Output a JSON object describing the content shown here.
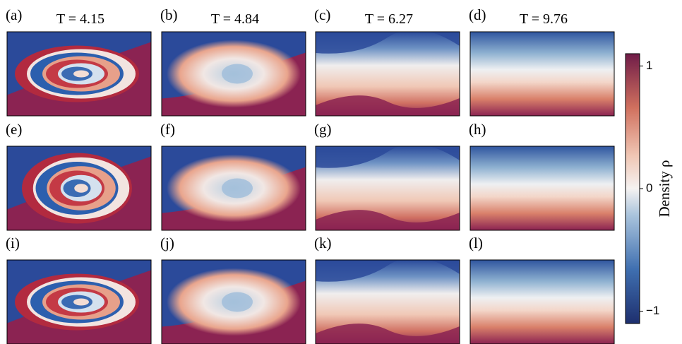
{
  "panels": [
    {
      "label": "(a)",
      "title": "T = 4.15"
    },
    {
      "label": "(b)",
      "title": "T = 4.84"
    },
    {
      "label": "(c)",
      "title": "T = 6.27"
    },
    {
      "label": "(d)",
      "title": "T = 9.76"
    },
    {
      "label": "(e)"
    },
    {
      "label": "(f)"
    },
    {
      "label": "(g)"
    },
    {
      "label": "(h)"
    },
    {
      "label": "(i)"
    },
    {
      "label": "(j)"
    },
    {
      "label": "(k)"
    },
    {
      "label": "(l)"
    }
  ],
  "colorbar": {
    "label": "Density ρ",
    "lim": [
      -1.1,
      1.1
    ],
    "ticks": [
      {
        "value": -1,
        "label": "−1"
      },
      0,
      1
    ]
  }
}
